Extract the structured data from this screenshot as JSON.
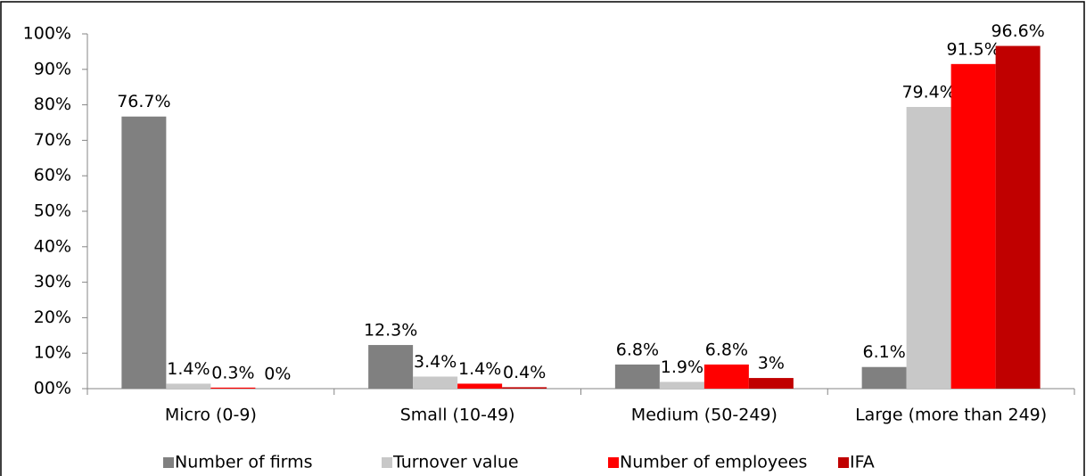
{
  "chart_data": {
    "type": "bar",
    "categories": [
      "Micro (0-9)",
      "Small (10-49)",
      "Medium (50-249)",
      "Large (more than 249)"
    ],
    "series": [
      {
        "name": "Number of firms",
        "color": "#808080",
        "values": [
          76.7,
          12.3,
          6.8,
          6.1
        ],
        "value_labels": [
          "76.7%",
          "12.3%",
          "6.8%",
          "6.1%"
        ]
      },
      {
        "name": "Turnover value",
        "color": "#c8c8c8",
        "values": [
          1.4,
          3.4,
          1.9,
          79.4
        ],
        "value_labels": [
          "1.4%",
          "3.4%",
          "1.9%",
          "79.4%"
        ]
      },
      {
        "name": "Number of employees",
        "color": "#ff0000",
        "values": [
          0.3,
          1.4,
          6.8,
          91.5
        ],
        "value_labels": [
          "0.3%",
          "1.4%",
          "6.8%",
          "91.5%"
        ]
      },
      {
        "name": "IFA",
        "color": "#c00000",
        "values": [
          0,
          0.4,
          3,
          96.6
        ],
        "value_labels": [
          "0%",
          "0.4%",
          "3%",
          "96.6%"
        ]
      }
    ],
    "ylim": [
      0,
      100
    ],
    "yticks": [
      {
        "value": 0,
        "label": "00%"
      },
      {
        "value": 10,
        "label": "10%"
      },
      {
        "value": 20,
        "label": "20%"
      },
      {
        "value": 30,
        "label": "30%"
      },
      {
        "value": 40,
        "label": "40%"
      },
      {
        "value": 50,
        "label": "50%"
      },
      {
        "value": 60,
        "label": "60%"
      },
      {
        "value": 70,
        "label": "70%"
      },
      {
        "value": 80,
        "label": "80%"
      },
      {
        "value": 90,
        "label": "90%"
      },
      {
        "value": 100,
        "label": "100%"
      }
    ],
    "legend": "bottom"
  }
}
